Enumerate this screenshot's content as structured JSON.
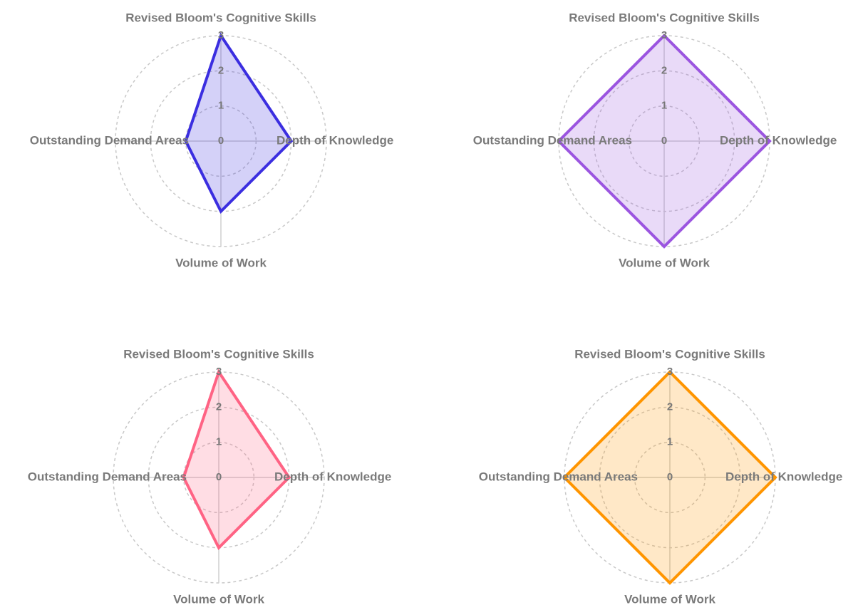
{
  "chart_data": [
    {
      "type": "radar",
      "axes": [
        "Revised Bloom's Cognitive Skills",
        "Depth of Knowledge",
        "Volume of Work",
        "Outstanding Demand Areas"
      ],
      "values": [
        3,
        2,
        2,
        1
      ],
      "color": "#3b2ee0",
      "rlim": [
        0,
        3
      ],
      "rticks": [
        0,
        1,
        2,
        3
      ]
    },
    {
      "type": "radar",
      "axes": [
        "Revised Bloom's Cognitive Skills",
        "Depth of Knowledge",
        "Volume of Work",
        "Outstanding Demand Areas"
      ],
      "values": [
        3,
        3,
        3,
        3
      ],
      "color": "#9b55e0",
      "rlim": [
        0,
        3
      ],
      "rticks": [
        0,
        1,
        2,
        3
      ]
    },
    {
      "type": "radar",
      "axes": [
        "Revised Bloom's Cognitive Skills",
        "Depth of Knowledge",
        "Volume of Work",
        "Outstanding Demand Areas"
      ],
      "values": [
        3,
        2,
        2,
        1
      ],
      "color": "#ff6384",
      "rlim": [
        0,
        3
      ],
      "rticks": [
        0,
        1,
        2,
        3
      ]
    },
    {
      "type": "radar",
      "axes": [
        "Revised Bloom's Cognitive Skills",
        "Depth of Knowledge",
        "Volume of Work",
        "Outstanding Demand Areas"
      ],
      "values": [
        3,
        3,
        3,
        3
      ],
      "color": "#ff9500",
      "rlim": [
        0,
        3
      ],
      "rticks": [
        0,
        1,
        2,
        3
      ]
    }
  ]
}
